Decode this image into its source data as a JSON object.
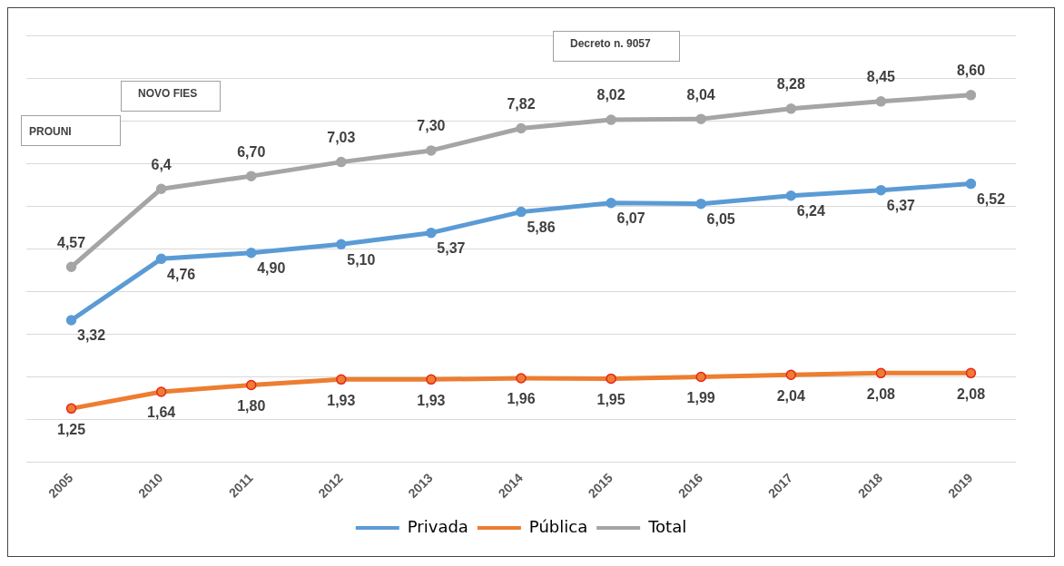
{
  "chart_data": {
    "type": "line",
    "categories": [
      "2005",
      "2010",
      "2011",
      "2012",
      "2013",
      "2014",
      "2015",
      "2016",
      "2017",
      "2018",
      "2019"
    ],
    "series": [
      {
        "name": "Privada",
        "color": "#5b9bd5",
        "values": [
          3.32,
          4.76,
          4.9,
          5.1,
          5.37,
          5.86,
          6.07,
          6.05,
          6.24,
          6.37,
          6.52
        ],
        "value_labels": [
          "3,32",
          "4,76",
          "4,90",
          "5,10",
          "5,37",
          "5,86",
          "6,07",
          "6,05",
          "6,24",
          "6,37",
          "6,52"
        ]
      },
      {
        "name": "Pública",
        "color": "#ed7d31",
        "values": [
          1.25,
          1.64,
          1.8,
          1.93,
          1.93,
          1.96,
          1.95,
          1.99,
          2.04,
          2.08,
          2.08
        ],
        "value_labels": [
          "1,25",
          "1,64",
          "1,80",
          "1,93",
          "1,93",
          "1,96",
          "1,95",
          "1,99",
          "2,04",
          "2,08",
          "2,08"
        ]
      },
      {
        "name": "Total",
        "color": "#a5a5a5",
        "values": [
          4.57,
          6.4,
          6.7,
          7.03,
          7.3,
          7.82,
          8.02,
          8.04,
          8.28,
          8.45,
          8.6
        ],
        "value_labels": [
          "4,57",
          "6,4",
          "6,70",
          "7,03",
          "7,30",
          "7,82",
          "8,02",
          "8,04",
          "8,28",
          "8,45",
          "8,60"
        ]
      }
    ],
    "ylim": [
      0,
      10
    ],
    "yticks": [
      {
        "value": 0,
        "label": null
      },
      {
        "value": 1,
        "label": null
      },
      {
        "value": 2,
        "label": null
      },
      {
        "value": 3,
        "label": null
      },
      {
        "value": 4,
        "label": null
      },
      {
        "value": 5,
        "label": null
      },
      {
        "value": 6,
        "label": null
      },
      {
        "value": 7,
        "label": null
      },
      {
        "value": 8,
        "label": null
      },
      {
        "value": 9,
        "label": null
      },
      {
        "value": 10,
        "label": null
      }
    ],
    "tick_labels": "x",
    "grid": "y",
    "legend": "bottom",
    "marker": "circle",
    "line_style": "solid",
    "annotations": [
      "PROUNI",
      "NOVO FIES",
      "Decreto n. 9057"
    ]
  }
}
